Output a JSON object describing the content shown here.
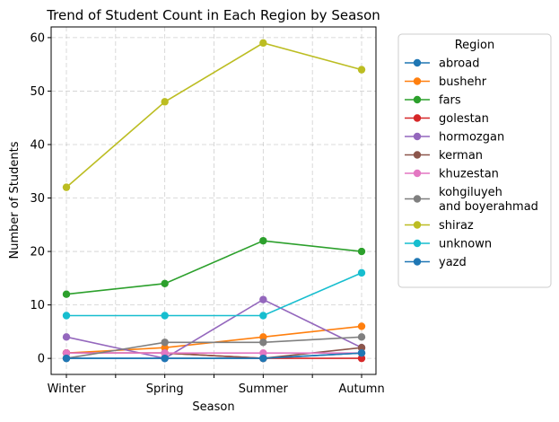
{
  "chart_data": {
    "type": "line",
    "title": "Trend of Student Count in Each Region by Season",
    "xlabel": "Season",
    "ylabel": "Number of Students",
    "categories": [
      "Winter",
      "Spring",
      "Summer",
      "Autumn"
    ],
    "ylim": [
      -3,
      62
    ],
    "yticks": [
      0,
      10,
      20,
      30,
      40,
      50,
      60
    ],
    "grid": true,
    "legend": {
      "title": "Region",
      "placement": "outside-right"
    },
    "series": [
      {
        "name": "abroad",
        "color": "#1f77b4",
        "values": [
          0,
          0,
          0,
          1
        ]
      },
      {
        "name": "bushehr",
        "color": "#ff7f0e",
        "values": [
          1,
          2,
          4,
          6
        ]
      },
      {
        "name": "fars",
        "color": "#2ca02c",
        "values": [
          12,
          14,
          22,
          20
        ]
      },
      {
        "name": "golestan",
        "color": "#d62728",
        "values": [
          1,
          1,
          0,
          0
        ]
      },
      {
        "name": "hormozgan",
        "color": "#9467bd",
        "values": [
          4,
          0,
          11,
          2
        ]
      },
      {
        "name": "kerman",
        "color": "#8c564b",
        "values": [
          1,
          1,
          0,
          2
        ]
      },
      {
        "name": "khuzestan",
        "color": "#e377c2",
        "values": [
          1,
          1,
          1,
          1
        ]
      },
      {
        "name": "kohgiluyeh\nand boyerahmad",
        "color": "#7f7f7f",
        "values": [
          0,
          3,
          3,
          4
        ]
      },
      {
        "name": "shiraz",
        "color": "#bcbd22",
        "values": [
          32,
          48,
          59,
          54
        ]
      },
      {
        "name": "unknown",
        "color": "#17becf",
        "values": [
          8,
          8,
          8,
          16
        ]
      },
      {
        "name": "yazd",
        "color": "#1f77b4",
        "values": [
          0,
          0,
          0,
          1
        ]
      }
    ]
  }
}
